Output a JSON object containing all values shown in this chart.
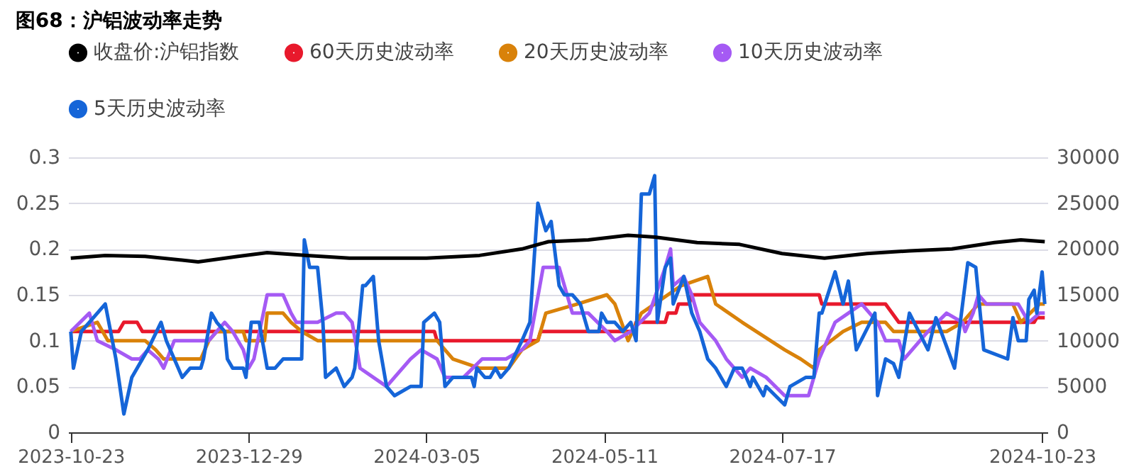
{
  "chart_data": {
    "type": "line",
    "title": "图68：沪铝波动率走势",
    "legend": "top",
    "grid": "y",
    "xlim": [
      "2023-10-22",
      "2024-10-25"
    ],
    "xticks": [
      "2023-10-23",
      "2023-12-29",
      "2024-03-05",
      "2024-05-11",
      "2024-07-17",
      "2024-10-23"
    ],
    "ylim": [
      0,
      0.3
    ],
    "yticks": [
      0,
      0.05,
      0.1,
      0.15,
      0.2,
      0.25,
      0.3
    ],
    "y2lim": [
      0,
      30000
    ],
    "y2ticks": [
      0,
      5000,
      10000,
      15000,
      20000,
      25000,
      30000
    ],
    "series": [
      {
        "name": "收盘价:沪铝指数",
        "color": "#000000",
        "axis": "y2",
        "x": [
          "2023-10-23",
          "2023-11-05",
          "2023-11-20",
          "2023-12-10",
          "2023-12-25",
          "2024-01-05",
          "2024-01-20",
          "2024-02-05",
          "2024-02-20",
          "2024-03-05",
          "2024-03-25",
          "2024-04-10",
          "2024-04-20",
          "2024-05-05",
          "2024-05-20",
          "2024-05-30",
          "2024-06-15",
          "2024-07-01",
          "2024-07-17",
          "2024-08-02",
          "2024-08-18",
          "2024-09-03",
          "2024-09-19",
          "2024-10-05",
          "2024-10-15",
          "2024-10-24"
        ],
        "values": [
          19000,
          19300,
          19200,
          18600,
          19200,
          19600,
          19300,
          19000,
          19000,
          19000,
          19300,
          20000,
          20800,
          21000,
          21500,
          21300,
          20700,
          20500,
          19500,
          19000,
          19500,
          19800,
          20000,
          20700,
          21000,
          20800
        ]
      },
      {
        "name": "60天历史波动率",
        "color": "#e8192c",
        "x": [
          "2023-10-23",
          "2023-11-10",
          "2023-11-12",
          "2023-11-17",
          "2023-11-19",
          "2024-03-08",
          "2024-03-09",
          "2024-04-16",
          "2024-04-17",
          "2024-05-22",
          "2024-05-23",
          "2024-06-03",
          "2024-06-04",
          "2024-06-07",
          "2024-06-08",
          "2024-06-12",
          "2024-06-13",
          "2024-07-31",
          "2024-08-01",
          "2024-08-25",
          "2024-08-30",
          "2024-10-20",
          "2024-10-21",
          "2024-10-24"
        ],
        "values": [
          0.11,
          0.11,
          0.12,
          0.12,
          0.11,
          0.11,
          0.1,
          0.1,
          0.11,
          0.11,
          0.12,
          0.12,
          0.13,
          0.13,
          0.14,
          0.14,
          0.15,
          0.15,
          0.14,
          0.14,
          0.12,
          0.12,
          0.125,
          0.125
        ]
      },
      {
        "name": "20天历史波动率",
        "color": "#d9820a",
        "x": [
          "2023-10-23",
          "2023-11-02",
          "2023-11-06",
          "2023-11-20",
          "2023-11-24",
          "2023-11-27",
          "2023-12-11",
          "2023-12-14",
          "2023-12-17",
          "2023-12-27",
          "2023-12-28",
          "2024-01-04",
          "2024-01-05",
          "2024-01-11",
          "2024-01-14",
          "2024-01-18",
          "2024-01-24",
          "2024-03-03",
          "2024-03-09",
          "2024-03-15",
          "2024-03-25",
          "2024-04-05",
          "2024-04-10",
          "2024-04-16",
          "2024-04-19",
          "2024-05-01",
          "2024-05-12",
          "2024-05-15",
          "2024-05-20",
          "2024-05-25",
          "2024-06-09",
          "2024-06-19",
          "2024-06-22",
          "2024-07-02",
          "2024-07-18",
          "2024-07-24",
          "2024-07-29",
          "2024-07-31",
          "2024-08-09",
          "2024-08-16",
          "2024-08-25",
          "2024-08-28",
          "2024-09-17",
          "2024-09-23",
          "2024-09-29",
          "2024-10-12",
          "2024-10-15",
          "2024-10-22",
          "2024-10-24"
        ],
        "values": [
          0.11,
          0.12,
          0.1,
          0.1,
          0.09,
          0.08,
          0.08,
          0.1,
          0.11,
          0.11,
          0.1,
          0.1,
          0.13,
          0.13,
          0.12,
          0.11,
          0.1,
          0.1,
          0.1,
          0.08,
          0.07,
          0.07,
          0.09,
          0.1,
          0.13,
          0.14,
          0.15,
          0.14,
          0.1,
          0.13,
          0.16,
          0.17,
          0.14,
          0.12,
          0.09,
          0.08,
          0.07,
          0.09,
          0.11,
          0.12,
          0.12,
          0.11,
          0.11,
          0.12,
          0.14,
          0.14,
          0.12,
          0.14,
          0.14
        ]
      },
      {
        "name": "10天历史波动率",
        "color": "#a55af4",
        "x": [
          "2023-10-23",
          "2023-10-30",
          "2023-11-02",
          "2023-11-09",
          "2023-11-15",
          "2023-11-18",
          "2023-11-21",
          "2023-11-25",
          "2023-11-27",
          "2023-12-01",
          "2023-12-14",
          "2023-12-17",
          "2023-12-20",
          "2023-12-23",
          "2023-12-27",
          "2023-12-29",
          "2023-12-31",
          "2024-01-05",
          "2024-01-11",
          "2024-01-14",
          "2024-01-16",
          "2024-01-24",
          "2024-01-31",
          "2024-02-03",
          "2024-02-06",
          "2024-02-09",
          "2024-02-19",
          "2024-02-22",
          "2024-02-28",
          "2024-03-03",
          "2024-03-09",
          "2024-03-12",
          "2024-03-19",
          "2024-03-26",
          "2024-04-04",
          "2024-04-10",
          "2024-04-13",
          "2024-04-18",
          "2024-04-24",
          "2024-04-29",
          "2024-05-05",
          "2024-05-12",
          "2024-05-15",
          "2024-05-21",
          "2024-05-28",
          "2024-06-03",
          "2024-06-05",
          "2024-06-06",
          "2024-06-10",
          "2024-06-13",
          "2024-06-16",
          "2024-06-22",
          "2024-06-26",
          "2024-07-02",
          "2024-07-05",
          "2024-07-11",
          "2024-07-18",
          "2024-07-27",
          "2024-07-31",
          "2024-08-06",
          "2024-08-11",
          "2024-08-16",
          "2024-08-19",
          "2024-08-22",
          "2024-08-25",
          "2024-08-30",
          "2024-09-01",
          "2024-09-07",
          "2024-09-10",
          "2024-09-17",
          "2024-09-23",
          "2024-09-24",
          "2024-09-27",
          "2024-09-29",
          "2024-10-02",
          "2024-10-12",
          "2024-10-14",
          "2024-10-18",
          "2024-10-22",
          "2024-10-24"
        ],
        "values": [
          0.11,
          0.13,
          0.1,
          0.09,
          0.08,
          0.08,
          0.09,
          0.08,
          0.07,
          0.1,
          0.1,
          0.11,
          0.12,
          0.11,
          0.09,
          0.07,
          0.08,
          0.15,
          0.15,
          0.13,
          0.12,
          0.12,
          0.13,
          0.13,
          0.12,
          0.07,
          0.05,
          0.06,
          0.08,
          0.09,
          0.08,
          0.06,
          0.06,
          0.08,
          0.08,
          0.09,
          0.1,
          0.18,
          0.18,
          0.13,
          0.13,
          0.11,
          0.1,
          0.11,
          0.13,
          0.18,
          0.2,
          0.16,
          0.17,
          0.15,
          0.12,
          0.1,
          0.08,
          0.06,
          0.07,
          0.06,
          0.04,
          0.04,
          0.08,
          0.12,
          0.13,
          0.14,
          0.13,
          0.12,
          0.1,
          0.1,
          0.08,
          0.1,
          0.11,
          0.13,
          0.12,
          0.11,
          0.13,
          0.15,
          0.14,
          0.14,
          0.14,
          0.12,
          0.13,
          0.13
        ]
      },
      {
        "name": "5天历史波动率",
        "color": "#1565d8",
        "x": [
          "2023-10-23",
          "2023-10-24",
          "2023-10-27",
          "2023-11-02",
          "2023-11-05",
          "2023-11-09",
          "2023-11-12",
          "2023-11-15",
          "2023-11-21",
          "2023-11-26",
          "2023-11-28",
          "2023-12-01",
          "2023-12-04",
          "2023-12-07",
          "2023-12-11",
          "2023-12-12",
          "2023-12-15",
          "2023-12-17",
          "2023-12-20",
          "2023-12-21",
          "2023-12-23",
          "2023-12-27",
          "2023-12-28",
          "2023-12-30",
          "2024-01-02",
          "2024-01-05",
          "2024-01-08",
          "2024-01-11",
          "2024-01-18",
          "2024-01-19",
          "2024-01-21",
          "2024-01-24",
          "2024-01-26",
          "2024-01-27",
          "2024-01-31",
          "2024-02-03",
          "2024-02-06",
          "2024-02-07",
          "2024-02-10",
          "2024-02-11",
          "2024-02-14",
          "2024-02-16",
          "2024-02-19",
          "2024-02-22",
          "2024-02-28",
          "2024-03-03",
          "2024-03-04",
          "2024-03-08",
          "2024-03-10",
          "2024-03-12",
          "2024-03-15",
          "2024-03-22",
          "2024-03-23",
          "2024-03-24",
          "2024-03-27",
          "2024-03-29",
          "2024-03-31",
          "2024-04-02",
          "2024-04-05",
          "2024-04-10",
          "2024-04-13",
          "2024-04-16",
          "2024-04-19",
          "2024-04-21",
          "2024-04-24",
          "2024-04-26",
          "2024-04-29",
          "2024-05-02",
          "2024-05-05",
          "2024-05-09",
          "2024-05-10",
          "2024-05-12",
          "2024-05-15",
          "2024-05-18",
          "2024-05-21",
          "2024-05-23",
          "2024-05-25",
          "2024-05-28",
          "2024-05-30",
          "2024-05-31",
          "2024-06-03",
          "2024-06-05",
          "2024-06-06",
          "2024-06-10",
          "2024-06-13",
          "2024-06-16",
          "2024-06-19",
          "2024-06-22",
          "2024-06-26",
          "2024-06-29",
          "2024-07-02",
          "2024-07-05",
          "2024-07-06",
          "2024-07-10",
          "2024-07-11",
          "2024-07-18",
          "2024-07-20",
          "2024-07-26",
          "2024-07-29",
          "2024-07-31",
          "2024-08-01",
          "2024-08-06",
          "2024-08-09",
          "2024-08-11",
          "2024-08-14",
          "2024-08-21",
          "2024-08-22",
          "2024-08-25",
          "2024-08-28",
          "2024-08-30",
          "2024-09-03",
          "2024-09-10",
          "2024-09-13",
          "2024-09-20",
          "2024-09-25",
          "2024-09-28",
          "2024-10-01",
          "2024-10-10",
          "2024-10-12",
          "2024-10-14",
          "2024-10-17",
          "2024-10-18",
          "2024-10-20",
          "2024-10-21",
          "2024-10-23",
          "2024-10-24"
        ],
        "values": [
          0.11,
          0.07,
          0.11,
          0.13,
          0.14,
          0.08,
          0.02,
          0.06,
          0.09,
          0.12,
          0.1,
          0.08,
          0.06,
          0.07,
          0.07,
          0.08,
          0.13,
          0.12,
          0.11,
          0.08,
          0.07,
          0.07,
          0.06,
          0.12,
          0.12,
          0.07,
          0.07,
          0.08,
          0.08,
          0.21,
          0.18,
          0.18,
          0.12,
          0.06,
          0.07,
          0.05,
          0.06,
          0.07,
          0.16,
          0.16,
          0.17,
          0.1,
          0.05,
          0.04,
          0.05,
          0.05,
          0.12,
          0.13,
          0.12,
          0.05,
          0.06,
          0.06,
          0.05,
          0.07,
          0.06,
          0.06,
          0.07,
          0.06,
          0.07,
          0.1,
          0.12,
          0.25,
          0.22,
          0.23,
          0.16,
          0.15,
          0.15,
          0.14,
          0.11,
          0.11,
          0.13,
          0.12,
          0.12,
          0.11,
          0.12,
          0.1,
          0.26,
          0.26,
          0.28,
          0.12,
          0.18,
          0.19,
          0.14,
          0.17,
          0.13,
          0.11,
          0.08,
          0.07,
          0.05,
          0.07,
          0.07,
          0.05,
          0.06,
          0.04,
          0.05,
          0.03,
          0.05,
          0.06,
          0.06,
          0.13,
          0.13,
          0.175,
          0.14,
          0.165,
          0.09,
          0.13,
          0.04,
          0.08,
          0.075,
          0.06,
          0.13,
          0.09,
          0.125,
          0.07,
          0.185,
          0.18,
          0.09,
          0.08,
          0.125,
          0.1,
          0.1,
          0.145,
          0.155,
          0.13,
          0.175,
          0.14
        ]
      }
    ]
  }
}
